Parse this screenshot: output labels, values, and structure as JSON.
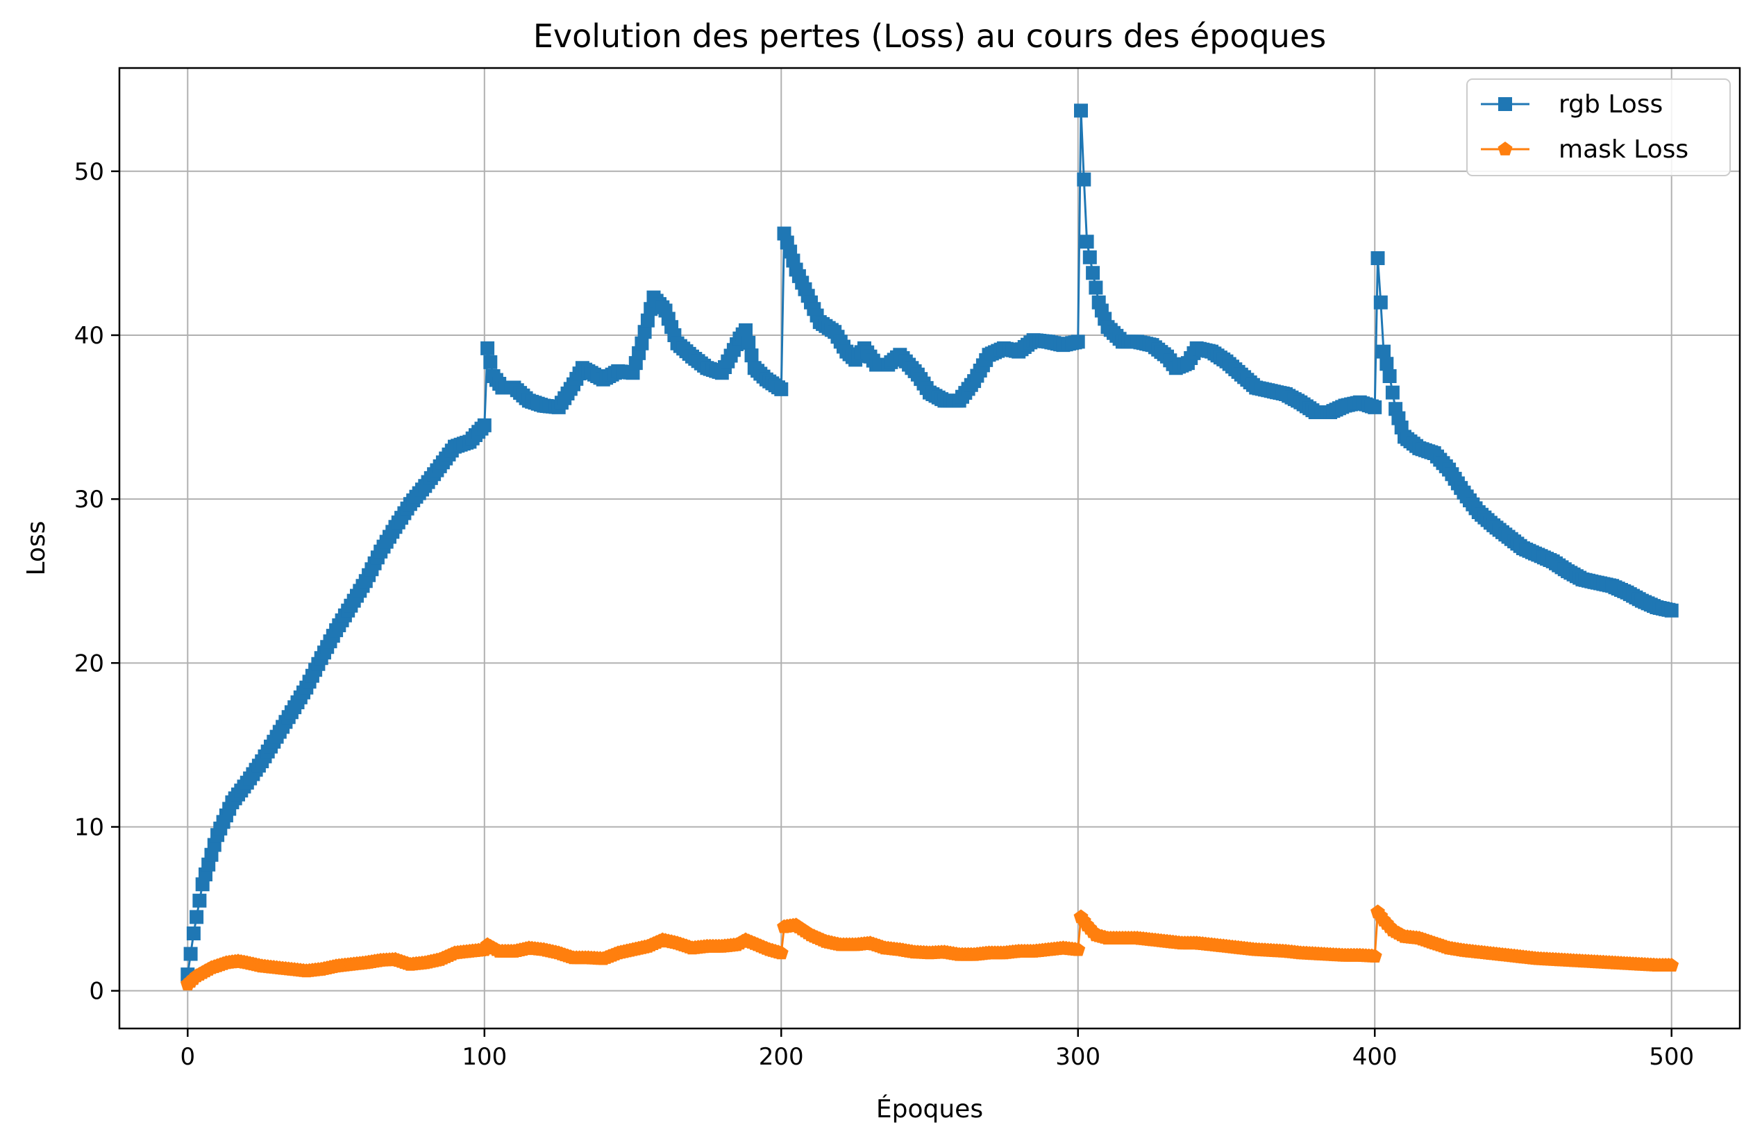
{
  "chart_data": {
    "type": "line",
    "title": "Evolution des pertes (Loss) au cours des époques",
    "xlabel": "Époques",
    "ylabel": "Loss",
    "xlim": [
      -23,
      523
    ],
    "ylim": [
      -2.3,
      56.3
    ],
    "xticks": [
      0,
      100,
      200,
      300,
      400,
      500
    ],
    "yticks": [
      0,
      10,
      20,
      30,
      40,
      50
    ],
    "grid": true,
    "legend_position": "top-right",
    "series": [
      {
        "name": "rgb Loss",
        "color": "#1f77b4",
        "marker": "square",
        "points": [
          [
            0,
            1.0
          ],
          [
            2,
            3.5
          ],
          [
            5,
            6.5
          ],
          [
            10,
            9.5
          ],
          [
            15,
            11.5
          ],
          [
            20,
            12.7
          ],
          [
            25,
            14.0
          ],
          [
            30,
            15.5
          ],
          [
            35,
            17.0
          ],
          [
            40,
            18.5
          ],
          [
            45,
            20.3
          ],
          [
            50,
            22.0
          ],
          [
            55,
            23.5
          ],
          [
            60,
            25.0
          ],
          [
            65,
            26.8
          ],
          [
            70,
            28.3
          ],
          [
            75,
            29.7
          ],
          [
            80,
            30.8
          ],
          [
            85,
            32.0
          ],
          [
            90,
            33.2
          ],
          [
            95,
            33.5
          ],
          [
            100,
            34.5
          ],
          [
            101,
            39.2
          ],
          [
            103,
            37.5
          ],
          [
            106,
            36.8
          ],
          [
            110,
            36.8
          ],
          [
            115,
            36.0
          ],
          [
            120,
            35.7
          ],
          [
            125,
            35.6
          ],
          [
            130,
            37.0
          ],
          [
            133,
            38.0
          ],
          [
            137,
            37.6
          ],
          [
            140,
            37.3
          ],
          [
            145,
            37.8
          ],
          [
            150,
            37.7
          ],
          [
            153,
            39.5
          ],
          [
            157,
            42.3
          ],
          [
            161,
            41.5
          ],
          [
            165,
            39.5
          ],
          [
            170,
            38.7
          ],
          [
            175,
            38.0
          ],
          [
            180,
            37.7
          ],
          [
            186,
            39.8
          ],
          [
            188,
            40.3
          ],
          [
            191,
            38.0
          ],
          [
            195,
            37.3
          ],
          [
            200,
            36.7
          ],
          [
            201,
            46.2
          ],
          [
            205,
            44.0
          ],
          [
            210,
            42.0
          ],
          [
            213,
            40.8
          ],
          [
            218,
            40.2
          ],
          [
            222,
            39.0
          ],
          [
            225,
            38.5
          ],
          [
            228,
            39.2
          ],
          [
            232,
            38.2
          ],
          [
            236,
            38.2
          ],
          [
            240,
            38.8
          ],
          [
            246,
            37.6
          ],
          [
            250,
            36.5
          ],
          [
            255,
            36.0
          ],
          [
            260,
            36.0
          ],
          [
            265,
            37.2
          ],
          [
            270,
            38.8
          ],
          [
            275,
            39.2
          ],
          [
            280,
            39.0
          ],
          [
            285,
            39.7
          ],
          [
            290,
            39.6
          ],
          [
            295,
            39.4
          ],
          [
            300,
            39.6
          ],
          [
            301,
            53.7
          ],
          [
            302,
            49.5
          ],
          [
            303,
            45.7
          ],
          [
            305,
            43.8
          ],
          [
            307,
            42.0
          ],
          [
            310,
            40.5
          ],
          [
            315,
            39.6
          ],
          [
            320,
            39.6
          ],
          [
            325,
            39.4
          ],
          [
            330,
            38.7
          ],
          [
            333,
            38.0
          ],
          [
            337,
            38.3
          ],
          [
            340,
            39.2
          ],
          [
            345,
            39.0
          ],
          [
            350,
            38.4
          ],
          [
            355,
            37.6
          ],
          [
            360,
            36.8
          ],
          [
            365,
            36.6
          ],
          [
            370,
            36.4
          ],
          [
            375,
            35.9
          ],
          [
            380,
            35.3
          ],
          [
            385,
            35.3
          ],
          [
            390,
            35.7
          ],
          [
            395,
            35.9
          ],
          [
            400,
            35.6
          ],
          [
            401,
            44.7
          ],
          [
            402,
            42.0
          ],
          [
            403,
            39.0
          ],
          [
            405,
            37.5
          ],
          [
            407,
            35.5
          ],
          [
            410,
            33.8
          ],
          [
            415,
            33.1
          ],
          [
            420,
            32.8
          ],
          [
            425,
            31.8
          ],
          [
            430,
            30.4
          ],
          [
            435,
            29.2
          ],
          [
            440,
            28.4
          ],
          [
            445,
            27.7
          ],
          [
            450,
            27.0
          ],
          [
            455,
            26.6
          ],
          [
            460,
            26.2
          ],
          [
            465,
            25.6
          ],
          [
            470,
            25.1
          ],
          [
            475,
            24.9
          ],
          [
            480,
            24.7
          ],
          [
            485,
            24.3
          ],
          [
            490,
            23.8
          ],
          [
            495,
            23.4
          ],
          [
            500,
            23.2
          ]
        ]
      },
      {
        "name": "mask Loss",
        "color": "#ff7f0e",
        "marker": "pentagon",
        "points": [
          [
            0,
            0.4
          ],
          [
            3,
            0.9
          ],
          [
            8,
            1.4
          ],
          [
            13,
            1.7
          ],
          [
            17,
            1.8
          ],
          [
            20,
            1.7
          ],
          [
            25,
            1.5
          ],
          [
            30,
            1.4
          ],
          [
            35,
            1.3
          ],
          [
            40,
            1.2
          ],
          [
            45,
            1.3
          ],
          [
            50,
            1.5
          ],
          [
            55,
            1.6
          ],
          [
            60,
            1.7
          ],
          [
            65,
            1.85
          ],
          [
            70,
            1.9
          ],
          [
            75,
            1.6
          ],
          [
            80,
            1.7
          ],
          [
            85,
            1.9
          ],
          [
            90,
            2.3
          ],
          [
            95,
            2.4
          ],
          [
            100,
            2.5
          ],
          [
            101,
            2.8
          ],
          [
            105,
            2.4
          ],
          [
            110,
            2.4
          ],
          [
            115,
            2.6
          ],
          [
            120,
            2.5
          ],
          [
            125,
            2.3
          ],
          [
            130,
            2.0
          ],
          [
            135,
            2.0
          ],
          [
            140,
            1.95
          ],
          [
            145,
            2.3
          ],
          [
            150,
            2.5
          ],
          [
            155,
            2.7
          ],
          [
            160,
            3.1
          ],
          [
            165,
            2.9
          ],
          [
            170,
            2.6
          ],
          [
            175,
            2.7
          ],
          [
            180,
            2.7
          ],
          [
            185,
            2.8
          ],
          [
            188,
            3.1
          ],
          [
            192,
            2.8
          ],
          [
            196,
            2.5
          ],
          [
            200,
            2.3
          ],
          [
            201,
            3.9
          ],
          [
            205,
            4.0
          ],
          [
            210,
            3.4
          ],
          [
            215,
            3.0
          ],
          [
            220,
            2.8
          ],
          [
            225,
            2.8
          ],
          [
            230,
            2.9
          ],
          [
            235,
            2.6
          ],
          [
            240,
            2.5
          ],
          [
            245,
            2.35
          ],
          [
            250,
            2.3
          ],
          [
            255,
            2.35
          ],
          [
            260,
            2.2
          ],
          [
            265,
            2.2
          ],
          [
            270,
            2.3
          ],
          [
            275,
            2.3
          ],
          [
            280,
            2.4
          ],
          [
            285,
            2.4
          ],
          [
            290,
            2.5
          ],
          [
            295,
            2.6
          ],
          [
            300,
            2.5
          ],
          [
            301,
            4.5
          ],
          [
            303,
            4.0
          ],
          [
            306,
            3.4
          ],
          [
            310,
            3.2
          ],
          [
            315,
            3.2
          ],
          [
            320,
            3.2
          ],
          [
            325,
            3.1
          ],
          [
            330,
            3.0
          ],
          [
            335,
            2.9
          ],
          [
            340,
            2.9
          ],
          [
            345,
            2.8
          ],
          [
            350,
            2.7
          ],
          [
            355,
            2.6
          ],
          [
            360,
            2.5
          ],
          [
            365,
            2.45
          ],
          [
            370,
            2.4
          ],
          [
            375,
            2.3
          ],
          [
            380,
            2.25
          ],
          [
            385,
            2.2
          ],
          [
            390,
            2.15
          ],
          [
            395,
            2.15
          ],
          [
            400,
            2.1
          ],
          [
            401,
            4.8
          ],
          [
            403,
            4.3
          ],
          [
            406,
            3.7
          ],
          [
            410,
            3.3
          ],
          [
            415,
            3.2
          ],
          [
            420,
            2.9
          ],
          [
            425,
            2.6
          ],
          [
            430,
            2.45
          ],
          [
            435,
            2.35
          ],
          [
            440,
            2.25
          ],
          [
            445,
            2.15
          ],
          [
            450,
            2.05
          ],
          [
            455,
            1.95
          ],
          [
            460,
            1.9
          ],
          [
            465,
            1.85
          ],
          [
            470,
            1.8
          ],
          [
            475,
            1.75
          ],
          [
            480,
            1.7
          ],
          [
            485,
            1.65
          ],
          [
            490,
            1.6
          ],
          [
            495,
            1.55
          ],
          [
            500,
            1.55
          ]
        ]
      }
    ]
  }
}
